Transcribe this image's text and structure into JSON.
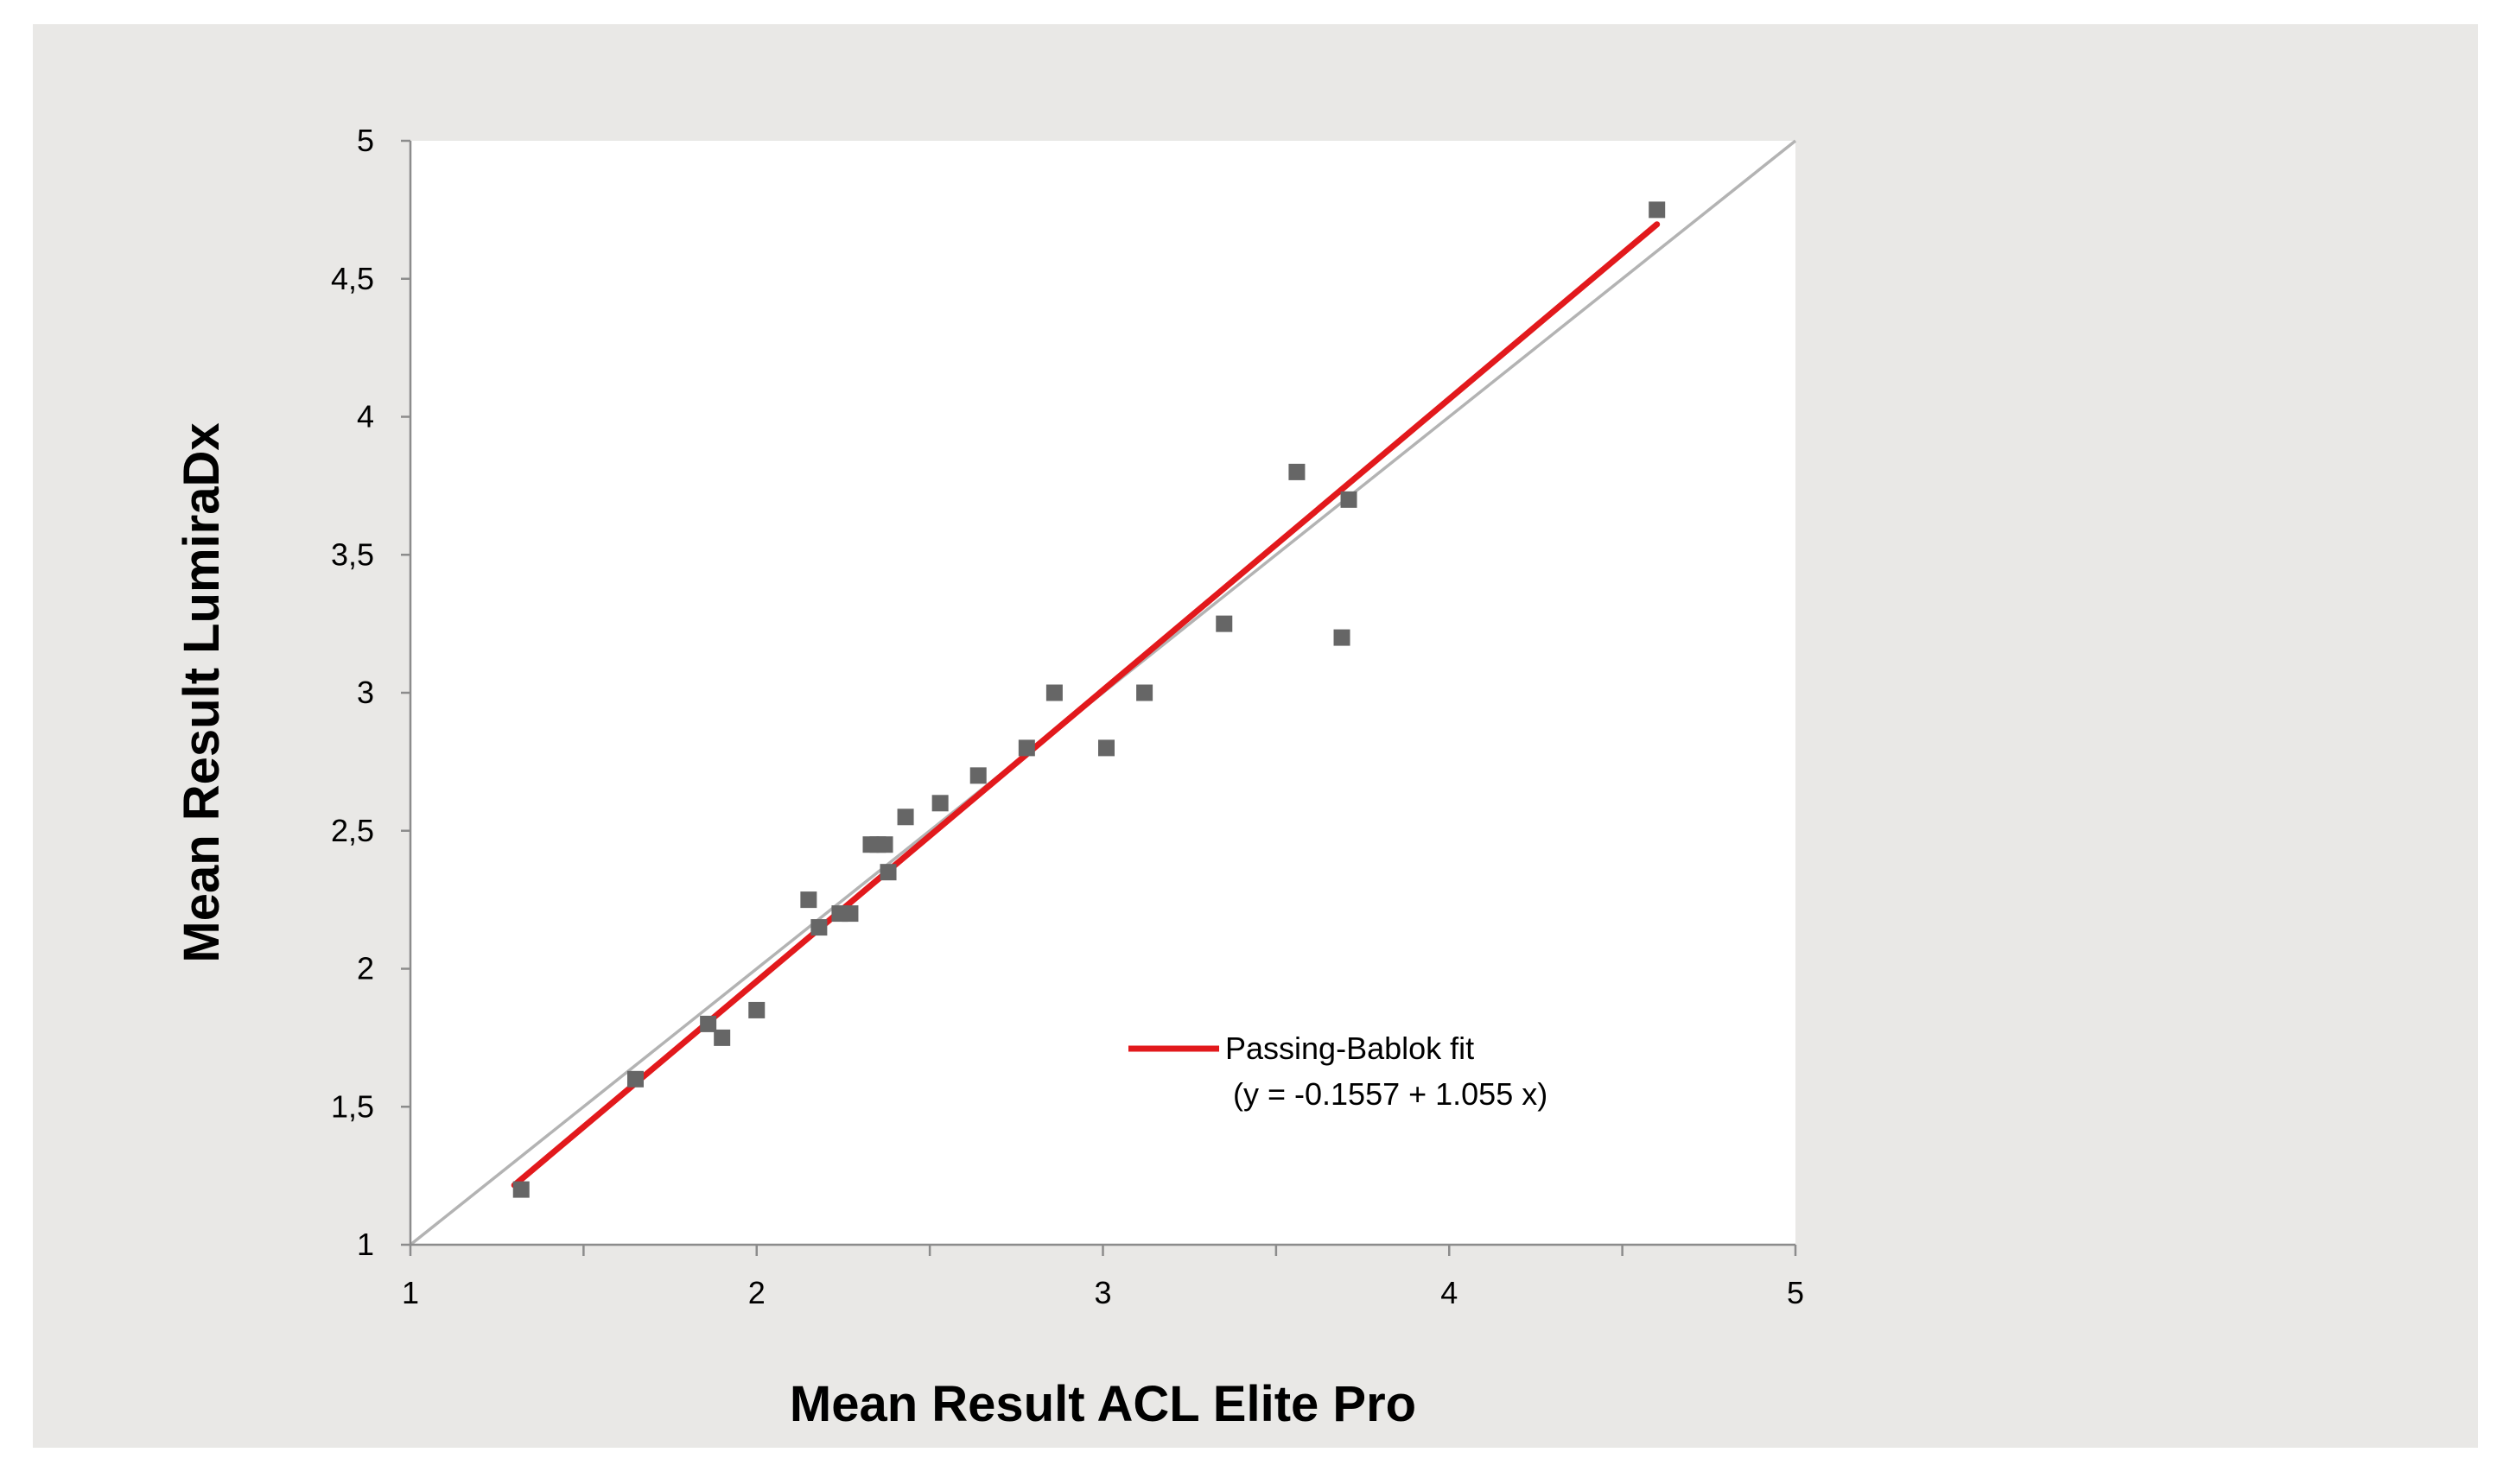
{
  "colors": {
    "figure_background": "#e9e8e6",
    "plot_background": "#ffffff",
    "fit_line": "#e2191c",
    "identity_line": "#b3b3b3",
    "points": "#666666",
    "axis": "#8c8c8c"
  },
  "chart_data": {
    "type": "scatter",
    "xlabel": "Mean Result ACL Elite Pro",
    "ylabel": "Mean Result LumiraDx",
    "xlim": [
      1,
      5
    ],
    "ylim": [
      1,
      5
    ],
    "x_ticks": [
      "1",
      "2",
      "3",
      "4",
      "5"
    ],
    "y_ticks": [
      "1",
      "1,5",
      "2",
      "2,5",
      "3",
      "3,5",
      "4",
      "4,5",
      "5"
    ],
    "x_tick_values": [
      1,
      2,
      3,
      4,
      5
    ],
    "y_tick_values": [
      1,
      1.5,
      2,
      2.5,
      3,
      3.5,
      4,
      4.5,
      5
    ],
    "x_minor_ticks": [
      1.5,
      2.5,
      3.5,
      4.5
    ],
    "grid": false,
    "points": [
      {
        "x": 1.32,
        "y": 1.2
      },
      {
        "x": 1.65,
        "y": 1.6
      },
      {
        "x": 1.86,
        "y": 1.8
      },
      {
        "x": 1.9,
        "y": 1.75
      },
      {
        "x": 2.0,
        "y": 1.85
      },
      {
        "x": 2.15,
        "y": 2.25
      },
      {
        "x": 2.18,
        "y": 2.15
      },
      {
        "x": 2.24,
        "y": 2.2
      },
      {
        "x": 2.27,
        "y": 2.2
      },
      {
        "x": 2.33,
        "y": 2.45
      },
      {
        "x": 2.35,
        "y": 2.45
      },
      {
        "x": 2.37,
        "y": 2.45
      },
      {
        "x": 2.38,
        "y": 2.35
      },
      {
        "x": 2.43,
        "y": 2.55
      },
      {
        "x": 2.53,
        "y": 2.6
      },
      {
        "x": 2.64,
        "y": 2.7
      },
      {
        "x": 2.78,
        "y": 2.8
      },
      {
        "x": 2.86,
        "y": 3.0
      },
      {
        "x": 3.01,
        "y": 2.8
      },
      {
        "x": 3.12,
        "y": 3.0
      },
      {
        "x": 3.35,
        "y": 3.25
      },
      {
        "x": 3.56,
        "y": 3.8
      },
      {
        "x": 3.69,
        "y": 3.2
      },
      {
        "x": 3.71,
        "y": 3.7
      },
      {
        "x": 4.6,
        "y": 4.75
      }
    ],
    "fit_line": {
      "x": [
        1.3,
        4.6
      ],
      "intercept": -0.1557,
      "slope": 1.055
    },
    "identity_line": {
      "x": [
        1,
        5
      ]
    },
    "legend": {
      "position": "lower-right",
      "entries": [
        {
          "label": "Passing-Bablok fit",
          "sublabel": "(y = -0.1557 + 1.055 x)"
        }
      ]
    }
  }
}
